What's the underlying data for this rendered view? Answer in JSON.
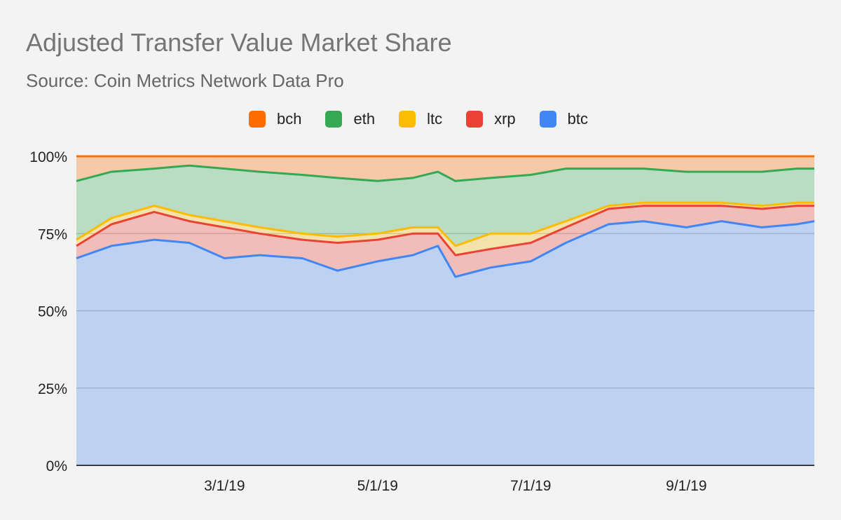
{
  "chart_data": {
    "type": "area",
    "stacked": true,
    "title": "Adjusted Transfer Value Market Share",
    "subtitle": "Source: Coin Metrics Network Data Pro",
    "xlabel": "",
    "ylabel": "",
    "legend_position": "top",
    "ylim": [
      0,
      100
    ],
    "y_ticks": [
      "0%",
      "25%",
      "50%",
      "75%",
      "100%"
    ],
    "x_ticks": [
      "3/1/19",
      "5/1/19",
      "7/1/19",
      "9/1/19"
    ],
    "grid": true,
    "legend": [
      {
        "name": "bch",
        "color": "#ff6d01"
      },
      {
        "name": "eth",
        "color": "#34a853"
      },
      {
        "name": "ltc",
        "color": "#fbbc04"
      },
      {
        "name": "xrp",
        "color": "#ea4335"
      },
      {
        "name": "btc",
        "color": "#4285f4"
      }
    ],
    "x": [
      "2019-01-01",
      "2019-01-15",
      "2019-02-01",
      "2019-02-15",
      "2019-03-01",
      "2019-03-15",
      "2019-04-01",
      "2019-04-15",
      "2019-05-01",
      "2019-05-15",
      "2019-05-25",
      "2019-06-01",
      "2019-06-15",
      "2019-07-01",
      "2019-07-15",
      "2019-08-01",
      "2019-08-15",
      "2019-09-01",
      "2019-09-15",
      "2019-10-01",
      "2019-10-15",
      "2019-10-22"
    ],
    "series": [
      {
        "name": "btc",
        "color": "#4285f4",
        "values": [
          67,
          71,
          73,
          72,
          67,
          68,
          67,
          63,
          66,
          68,
          71,
          61,
          64,
          66,
          72,
          78,
          79,
          77,
          79,
          77,
          78,
          79
        ]
      },
      {
        "name": "xrp",
        "color": "#ea4335",
        "values": [
          4,
          7,
          9,
          7,
          10,
          7,
          6,
          9,
          7,
          7,
          4,
          7,
          6,
          6,
          5,
          5,
          5,
          7,
          5,
          6,
          6,
          5
        ]
      },
      {
        "name": "ltc",
        "color": "#fbbc04",
        "values": [
          2,
          2,
          2,
          2,
          2,
          2,
          2,
          2,
          2,
          2,
          2,
          3,
          5,
          3,
          2,
          1,
          1,
          1,
          1,
          1,
          1,
          1
        ]
      },
      {
        "name": "eth",
        "color": "#34a853",
        "values": [
          19,
          15,
          12,
          16,
          17,
          18,
          19,
          19,
          17,
          16,
          18,
          21,
          18,
          19,
          17,
          12,
          11,
          10,
          10,
          11,
          11,
          11
        ]
      },
      {
        "name": "bch",
        "color": "#ff6d01",
        "values": [
          8,
          5,
          4,
          3,
          4,
          5,
          6,
          7,
          8,
          7,
          5,
          8,
          7,
          6,
          4,
          4,
          4,
          5,
          5,
          5,
          4,
          4
        ]
      }
    ]
  }
}
